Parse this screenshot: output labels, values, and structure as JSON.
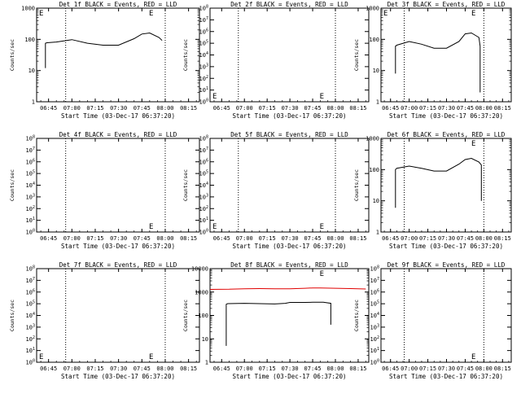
{
  "x_ticks": [
    "06:45",
    "07:00",
    "07:15",
    "07:30",
    "07:45",
    "08:00",
    "08:15"
  ],
  "colors": {
    "events": "#000000",
    "lld": "#e00000",
    "background": "#ffffff"
  },
  "chart_data": [
    {
      "type": "line",
      "title": "Det 1f BLACK = Events, RED = LLD",
      "xlabel": "Start Time (03-Dec-17 06:37:20)",
      "ylabel": "Counts/sec",
      "scale": "log",
      "ylim": [
        1,
        1000
      ],
      "y_ticks": [
        "1",
        "10",
        "100",
        "1000"
      ],
      "xlim": [
        "06:37:20",
        "08:22"
      ],
      "marker_lines": [
        "06:56",
        "08:00"
      ],
      "edge_markers": [
        {
          "at": "06:37:20",
          "label": "E"
        },
        {
          "at": "07:48",
          "label": "E"
        }
      ],
      "series": [
        {
          "color": "#000000",
          "x": [
            "06:43",
            "06:43",
            "06:44",
            "06:50",
            "07:00",
            "07:10",
            "07:20",
            "07:30",
            "07:40",
            "07:45",
            "07:50",
            "07:56",
            "07:58"
          ],
          "y": [
            12,
            75,
            78,
            82,
            98,
            75,
            65,
            65,
            105,
            148,
            160,
            115,
            92
          ]
        }
      ]
    },
    {
      "type": "line",
      "title": "Det 2f BLACK = Events, RED = LLD",
      "xlabel": "Start Time (03-Dec-17 06:37:20)",
      "ylabel": "Counts/sec",
      "scale": "log",
      "ylim": [
        1,
        100000000
      ],
      "y_ticks": [
        "10^0",
        "10^1",
        "10^2",
        "10^3",
        "10^4",
        "10^5",
        "10^6",
        "10^7",
        "10^8"
      ],
      "xlim": [
        "06:37:20",
        "08:22"
      ],
      "marker_lines": [
        "06:56",
        "08:00"
      ],
      "edge_markers": [
        {
          "at": "06:37:20",
          "label": "E"
        },
        {
          "at": "07:48",
          "label": "E"
        }
      ],
      "series": []
    },
    {
      "type": "line",
      "title": "Det 3f BLACK = Events, RED = LLD",
      "xlabel": "Start Time (03-Dec-17 06:37:20)",
      "ylabel": "Counts/sec",
      "scale": "log",
      "ylim": [
        1,
        1000
      ],
      "y_ticks": [
        "1",
        "10",
        "100",
        "1000"
      ],
      "xlim": [
        "06:37:20",
        "08:22"
      ],
      "marker_lines": [
        "06:56",
        "08:00"
      ],
      "edge_markers": [
        {
          "at": "06:37:20",
          "label": "E"
        },
        {
          "at": "07:48",
          "label": "E"
        }
      ],
      "series": [
        {
          "color": "#000000",
          "x": [
            "06:49",
            "06:49",
            "06:50",
            "07:00",
            "07:10",
            "07:20",
            "07:30",
            "07:40",
            "07:45",
            "07:50",
            "07:56",
            "07:57",
            "07:57"
          ],
          "y": [
            8,
            60,
            65,
            85,
            70,
            52,
            52,
            85,
            150,
            160,
            115,
            60,
            2
          ]
        }
      ]
    },
    {
      "type": "line",
      "title": "Det 4f BLACK = Events, RED = LLD",
      "xlabel": "Start Time (03-Dec-17 06:37:20)",
      "ylabel": "Counts/sec",
      "scale": "log",
      "ylim": [
        1,
        100000000
      ],
      "y_ticks": [
        "10^0",
        "10^1",
        "10^2",
        "10^3",
        "10^4",
        "10^5",
        "10^6",
        "10^7",
        "10^8"
      ],
      "xlim": [
        "06:37:20",
        "08:22"
      ],
      "marker_lines": [
        "06:56",
        "08:00"
      ],
      "edge_markers": [
        {
          "at": "07:48",
          "label": "E"
        }
      ],
      "series": []
    },
    {
      "type": "line",
      "title": "Det 5f BLACK = Events, RED = LLD",
      "xlabel": "Start Time (03-Dec-17 06:37:20)",
      "ylabel": "Counts/sec",
      "scale": "log",
      "ylim": [
        1,
        100000000
      ],
      "y_ticks": [
        "10^0",
        "10^1",
        "10^2",
        "10^3",
        "10^4",
        "10^5",
        "10^6",
        "10^7",
        "10^8"
      ],
      "xlim": [
        "06:37:20",
        "08:22"
      ],
      "marker_lines": [
        "06:56",
        "08:00"
      ],
      "edge_markers": [
        {
          "at": "06:37:20",
          "label": "E"
        },
        {
          "at": "07:48",
          "label": "E"
        }
      ],
      "series": []
    },
    {
      "type": "line",
      "title": "Det 6f BLACK = Events, RED = LLD",
      "xlabel": "Start Time (03-Dec-17 06:37:20)",
      "ylabel": "Counts/sec",
      "scale": "log",
      "ylim": [
        1,
        1000
      ],
      "y_ticks": [
        "1",
        "10",
        "100",
        "1000"
      ],
      "xlim": [
        "06:37:20",
        "08:22"
      ],
      "marker_lines": [
        "06:56",
        "08:00"
      ],
      "edge_markers": [
        {
          "at": "07:48",
          "label": "E"
        }
      ],
      "series": [
        {
          "color": "#000000",
          "x": [
            "06:49",
            "06:49",
            "06:50",
            "07:00",
            "07:10",
            "07:20",
            "07:30",
            "07:40",
            "07:45",
            "07:50",
            "07:56",
            "07:58",
            "07:58"
          ],
          "y": [
            6,
            100,
            110,
            130,
            110,
            90,
            90,
            150,
            210,
            230,
            175,
            140,
            10
          ]
        }
      ]
    },
    {
      "type": "line",
      "title": "Det 7f BLACK = Events, RED = LLD",
      "xlabel": "Start Time (03-Dec-17 06:37:20)",
      "ylabel": "Counts/sec",
      "scale": "log",
      "ylim": [
        1,
        100000000
      ],
      "y_ticks": [
        "10^0",
        "10^1",
        "10^2",
        "10^3",
        "10^4",
        "10^5",
        "10^6",
        "10^7",
        "10^8"
      ],
      "xlim": [
        "06:37:20",
        "08:22"
      ],
      "marker_lines": [
        "06:56",
        "08:00"
      ],
      "edge_markers": [
        {
          "at": "06:37:20",
          "label": "E"
        },
        {
          "at": "07:48",
          "label": "E"
        }
      ],
      "series": []
    },
    {
      "type": "line",
      "title": "Det 8f BLACK = Events, RED = LLD",
      "xlabel": "Start Time (03-Dec-17 06:37:20)",
      "ylabel": "Counts/sec",
      "scale": "log",
      "ylim": [
        1,
        10000
      ],
      "y_ticks": [
        "1",
        "10",
        "100",
        "1000",
        "10000"
      ],
      "xlim": [
        "06:37:20",
        "08:22"
      ],
      "marker_lines": [],
      "edge_markers": [
        {
          "at": "07:48",
          "label": "E"
        }
      ],
      "series": [
        {
          "color": "#e00000",
          "x": [
            "06:37:20",
            "06:50",
            "07:00",
            "07:10",
            "07:20",
            "07:30",
            "07:40",
            "07:45",
            "07:50",
            "08:00",
            "08:10",
            "08:20"
          ],
          "y": [
            1300,
            1320,
            1380,
            1400,
            1380,
            1380,
            1450,
            1500,
            1500,
            1450,
            1400,
            1350
          ]
        },
        {
          "color": "#000000",
          "x": [
            "06:48",
            "06:48",
            "06:49",
            "07:00",
            "07:10",
            "07:20",
            "07:27",
            "07:30",
            "07:40",
            "07:45",
            "07:52",
            "07:57",
            "07:57"
          ],
          "y": [
            5,
            300,
            320,
            330,
            320,
            310,
            330,
            360,
            360,
            365,
            370,
            330,
            40
          ]
        }
      ]
    },
    {
      "type": "line",
      "title": "Det 9f BLACK = Events, RED = LLD",
      "xlabel": "Start Time (03-Dec-17 06:37:20)",
      "ylabel": "Counts/sec",
      "scale": "log",
      "ylim": [
        1,
        100000000
      ],
      "y_ticks": [
        "10^0",
        "10^1",
        "10^2",
        "10^3",
        "10^4",
        "10^5",
        "10^6",
        "10^7",
        "10^8"
      ],
      "xlim": [
        "06:37:20",
        "08:22"
      ],
      "marker_lines": [
        "06:56",
        "08:00"
      ],
      "edge_markers": [
        {
          "at": "07:48",
          "label": "E"
        }
      ],
      "series": []
    }
  ]
}
